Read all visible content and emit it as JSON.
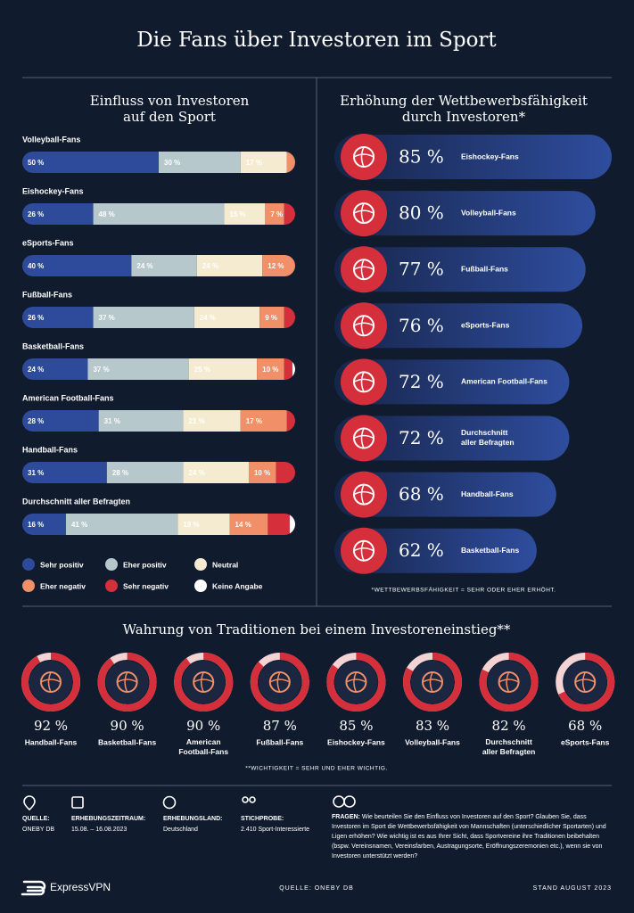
{
  "title": "Die Fans über Investoren im Sport",
  "chart_data": [
    {
      "type": "stackedbar",
      "title": "Einfluss von Investoren\nauf den Sport",
      "categories": [
        "Volleyball-Fans",
        "Eishockey-Fans",
        "eSports-Fans",
        "Fußball-Fans",
        "Basketball-Fans",
        "American Football-Fans",
        "Handball-Fans",
        "Durchschnitt aller Befragten"
      ],
      "xlim": [
        0,
        100
      ],
      "series": [
        {
          "name": "Sehr positiv",
          "color": "#2e4b9b",
          "values": [
            50,
            26,
            40,
            26,
            24,
            28,
            31,
            16
          ],
          "value_labels": [
            "50 %",
            "26 %",
            "40 %",
            "26 %",
            "24 %",
            "28 %",
            "31 %",
            "16 %"
          ]
        },
        {
          "name": "Eher positiv",
          "color": "#b6c8cb",
          "values": [
            30,
            48,
            24,
            37,
            37,
            31,
            28,
            41
          ],
          "value_labels": [
            "30 %",
            "48 %",
            "24 %",
            "37 %",
            "37 %",
            "31 %",
            "28 %",
            "41 %"
          ]
        },
        {
          "name": "Neutral",
          "color": "#f4ebd1",
          "values": [
            17,
            15,
            24,
            24,
            25,
            21,
            24,
            19
          ],
          "value_labels": [
            "17 %",
            "15 %",
            "24 %",
            "24 %",
            "25 %",
            "21 %",
            "24 %",
            "19 %"
          ]
        },
        {
          "name": "Eher negativ",
          "color": "#f08f68",
          "values": [
            3,
            7,
            12,
            9,
            10,
            17,
            10,
            14
          ],
          "value_labels": [
            null,
            "7 %",
            "12 %",
            "9 %",
            "10 %",
            "17 %",
            "10 %",
            "14 %"
          ]
        },
        {
          "name": "Sehr negativ",
          "color": "#d42f3b",
          "values": [
            0,
            4,
            0,
            4,
            3,
            3,
            7,
            8
          ]
        },
        {
          "name": "Keine Angabe",
          "color": "#ffffff",
          "values": [
            0,
            0,
            0,
            0,
            1,
            0,
            0,
            2
          ]
        }
      ]
    },
    {
      "type": "bar",
      "orientation": "horizontal",
      "title": "Erhöhung der Wettbewerbsfähigkeit\ndurch Investoren*",
      "note": "*WETTBEWERBSFÄHIGKEIT = SEHR ODER EHER ERHÖHT.",
      "categories": [
        "Eishockey-Fans",
        "Volleyball-Fans",
        "Fußball-Fans",
        "eSports-Fans",
        "American Football-Fans",
        "Durchschnitt\naller Befragten",
        "Handball-Fans",
        "Basketball-Fans"
      ],
      "values": [
        85,
        80,
        77,
        76,
        72,
        72,
        68,
        62
      ],
      "value_labels": [
        "85 %",
        "80 %",
        "77 %",
        "76 %",
        "72 %",
        "72 %",
        "68 %",
        "62 %"
      ],
      "xlim": [
        0,
        85
      ],
      "color": "#2f4d9e"
    },
    {
      "type": "donut",
      "title": "Wahrung von Traditionen bei einem Investoreneinstieg**",
      "note": "**WICHTIGKEIT = SEHR UND EHER WICHTIG.",
      "categories": [
        "Handball-Fans",
        "Basketball-Fans",
        "American\nFootball-Fans",
        "Fußball-Fans",
        "Eishockey-Fans",
        "Volleyball-Fans",
        "Durchschnitt\naller Befragten",
        "eSports-Fans"
      ],
      "values": [
        92,
        90,
        90,
        87,
        85,
        83,
        82,
        68
      ],
      "value_labels": [
        "92 %",
        "90 %",
        "90 %",
        "87 %",
        "85 %",
        "83 %",
        "82 %",
        "68 %"
      ],
      "ylim": [
        0,
        100
      ],
      "color": "#d42f3b"
    }
  ],
  "footer": {
    "items": [
      {
        "label": "QUELLE:",
        "value": "ONEBY DB"
      },
      {
        "label": "ERHEBUNGSZEITRAUM:",
        "value": "15.08. – 16.08.2023"
      },
      {
        "label": "ERHEBUNGSLAND:",
        "value": "Deutschland"
      },
      {
        "label": "STICHPROBE:",
        "value": "2.410 Sport-Interessierte"
      }
    ],
    "questions": {
      "label": "FRAGEN:",
      "text": "Wie beurteilen Sie den Einfluss von Investoren auf den Sport? Glauben Sie, dass Investoren im Sport die Wettbewerbsfähigkeit von Mannschaften (unterschiedlicher Sportarten) und Ligen erhöhen? Wie wichtig ist es aus Ihrer Sicht, dass Sportvereine ihre Traditionen beibehalten (bspw. Vereinsnamen, Vereinsfarben, Austragungsorte, Eröffnungszeremonien etc.), wenn sie von Investoren unterstützt werden?"
    }
  },
  "bottom": {
    "brand": "ExpressVPN",
    "source": "QUELLE: ONEBY DB",
    "date": "STAND AUGUST 2023"
  }
}
